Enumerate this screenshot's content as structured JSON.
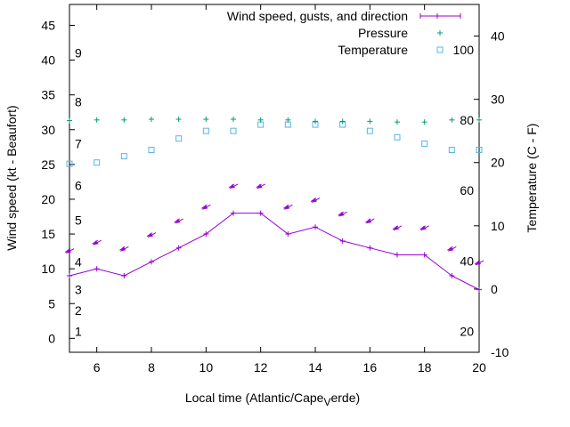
{
  "chart_data": {
    "type": "line",
    "xlabel": "Local time (Atlantic/Cape",
    "xlabel_sub": "V",
    "xlabel_end": "erde)",
    "ylabel": "Wind speed (kt - Beaufort)",
    "y2label": "Temperature (C - F)",
    "xlim": [
      5,
      20
    ],
    "ylim": [
      -2,
      48
    ],
    "y2lim": [
      -10,
      45
    ],
    "x_ticks": [
      "6",
      "8",
      "10",
      "12",
      "14",
      "16",
      "18",
      "20"
    ],
    "y_ticks": [
      "0",
      "5",
      "10",
      "15",
      "20",
      "25",
      "30",
      "35",
      "40",
      "45"
    ],
    "y2_ticks": [
      "-10",
      "0",
      "10",
      "20",
      "30",
      "40"
    ],
    "beaufort_labels": [
      {
        "label": "1",
        "y": 1
      },
      {
        "label": "2",
        "y": 4
      },
      {
        "label": "3",
        "y": 7
      },
      {
        "label": "4",
        "y": 11
      },
      {
        "label": "5",
        "y": 17
      },
      {
        "label": "6",
        "y": 22
      },
      {
        "label": "7",
        "y": 28
      },
      {
        "label": "8",
        "y": 34
      },
      {
        "label": "9",
        "y": 41
      }
    ],
    "fahrenheit_labels": [
      {
        "label": "20",
        "y2": -6.7
      },
      {
        "label": "40",
        "y2": 4.4
      },
      {
        "label": "60",
        "y2": 15.6
      },
      {
        "label": "80",
        "y2": 26.7
      },
      {
        "label": "100",
        "y2": 37.8
      }
    ],
    "legend": [
      {
        "name": "Wind speed, gusts, and direction",
        "color": "#9400d3"
      },
      {
        "name": "Pressure",
        "color": "#009e73"
      },
      {
        "name": "Temperature",
        "color": "#56b4e9"
      }
    ],
    "x": [
      5,
      6,
      7,
      8,
      9,
      10,
      11,
      12,
      13,
      14,
      15,
      16,
      17,
      18,
      19,
      20
    ],
    "wind_speed": [
      9,
      10,
      9,
      11,
      13,
      15,
      18,
      18,
      15,
      16,
      14,
      13,
      12,
      12,
      9,
      7
    ],
    "wind_gust_markers": [
      12.5,
      13.7,
      12.8,
      14.8,
      16.8,
      18.8,
      21.8,
      21.8,
      18.8,
      19.8,
      17.8,
      16.8,
      15.8,
      15.8,
      12.8,
      10.8
    ],
    "pressure": [
      31.3,
      31.4,
      31.4,
      31.5,
      31.5,
      31.5,
      31.5,
      31.4,
      31.4,
      31.2,
      31.2,
      31.2,
      31.1,
      31.1,
      31.4,
      31.4
    ],
    "temperature_c": [
      19.8,
      20.0,
      21.0,
      22.0,
      23.8,
      25.0,
      25.0,
      26.0,
      26.0,
      26.0,
      26.0,
      25.0,
      24.0,
      23.0,
      22.0,
      22.0
    ],
    "colors": {
      "wind": "#9400d3",
      "pressure": "#009e73",
      "temperature": "#56b4e9"
    }
  }
}
